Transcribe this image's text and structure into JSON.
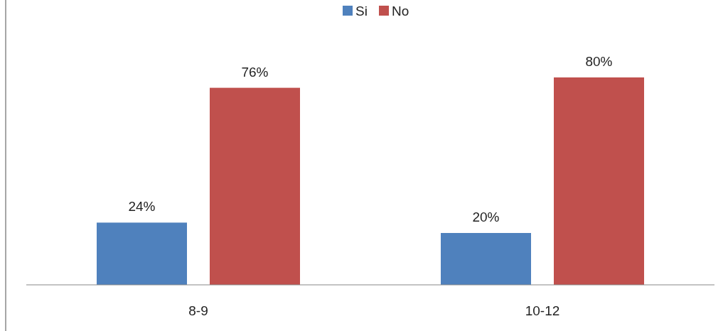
{
  "chart_data": {
    "type": "bar",
    "categories": [
      "8-9",
      "10-12"
    ],
    "series": [
      {
        "name": "Si",
        "color": "#4f81bd",
        "values": [
          24,
          20
        ],
        "value_labels": [
          "24%",
          "20%"
        ]
      },
      {
        "name": "No",
        "color": "#c0504d",
        "values": [
          76,
          80
        ],
        "value_labels": [
          "76%",
          "80%"
        ]
      }
    ],
    "legend": "top"
  }
}
